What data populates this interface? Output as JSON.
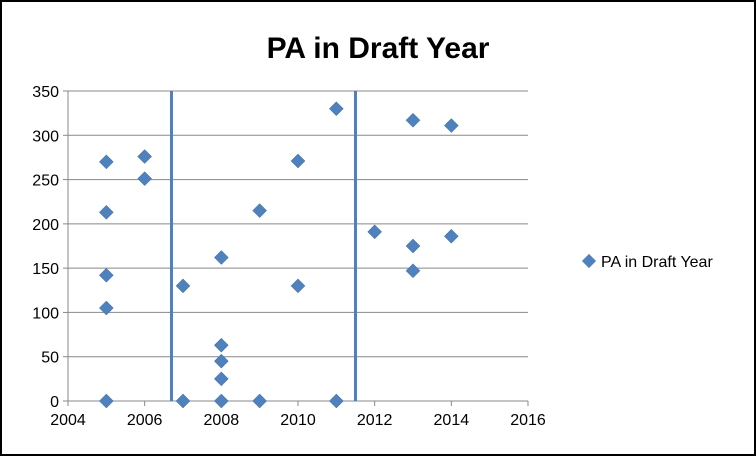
{
  "chart_data": {
    "type": "scatter",
    "title": "PA in Draft Year",
    "xlabel": "",
    "ylabel": "",
    "xlim": [
      2004,
      2016
    ],
    "ylim": [
      0,
      350
    ],
    "x_ticks": [
      2004,
      2006,
      2008,
      2010,
      2012,
      2014,
      2016
    ],
    "y_ticks": [
      0,
      50,
      100,
      150,
      200,
      250,
      300,
      350
    ],
    "grid": "horizontal",
    "legend_position": "right",
    "marker": "diamond",
    "color": "#4f81bd",
    "vertical_lines": [
      2006.7,
      2011.5
    ],
    "series": [
      {
        "name": "PA in Draft Year",
        "points": [
          [
            2005,
            270
          ],
          [
            2005,
            213
          ],
          [
            2005,
            142
          ],
          [
            2005,
            105
          ],
          [
            2005,
            0
          ],
          [
            2006,
            276
          ],
          [
            2006,
            251
          ],
          [
            2007,
            130
          ],
          [
            2007,
            0
          ],
          [
            2008,
            162
          ],
          [
            2008,
            63
          ],
          [
            2008,
            45
          ],
          [
            2008,
            25
          ],
          [
            2008,
            0
          ],
          [
            2009,
            215
          ],
          [
            2009,
            0
          ],
          [
            2010,
            271
          ],
          [
            2010,
            130
          ],
          [
            2011,
            330
          ],
          [
            2011,
            0
          ],
          [
            2012,
            191
          ],
          [
            2013,
            317
          ],
          [
            2013,
            175
          ],
          [
            2013,
            147
          ],
          [
            2014,
            311
          ],
          [
            2014,
            186
          ]
        ]
      }
    ]
  }
}
